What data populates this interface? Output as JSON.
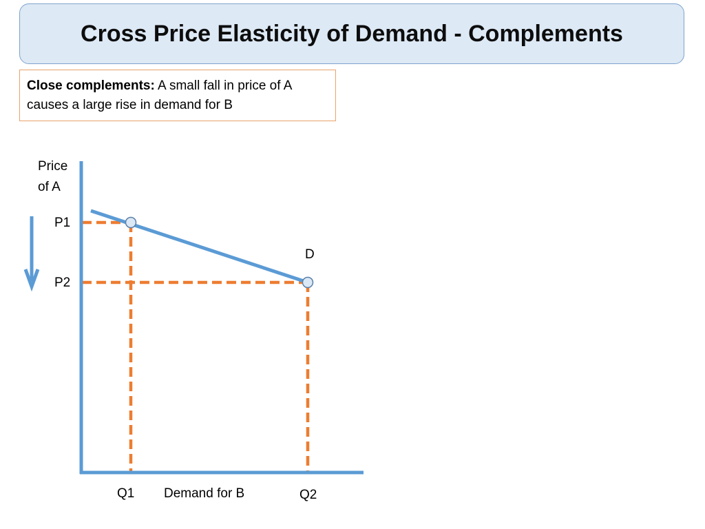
{
  "title": "Cross Price Elasticity of Demand - Complements",
  "note": {
    "bold": "Close complements:",
    "text": " A small fall in price of A causes a large rise in demand for B"
  },
  "diagram": {
    "y_axis_label_line1": "Price",
    "y_axis_label_line2": "of A",
    "x_axis_label": "Demand for B",
    "p1": "P1",
    "p2": "P2",
    "q1": "Q1",
    "q2": "Q2",
    "curve_label": "D",
    "colors": {
      "axis": "#5b9bd5",
      "guide": "#ed7d31",
      "curve": "#5b9bd5",
      "point_fill": "#dbe8f5"
    }
  }
}
